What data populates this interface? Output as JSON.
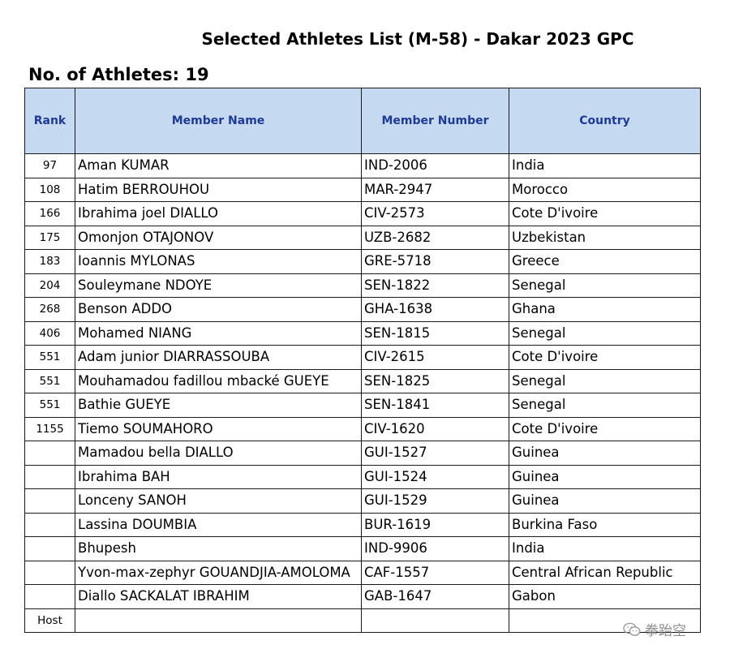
{
  "title": "Selected Athletes List (M-58) - Dakar 2023 GPC",
  "athlete_count": "No. of Athletes: 19",
  "table": {
    "headers": {
      "rank": "Rank",
      "name": "Member Name",
      "number": "Member Number",
      "country": "Country"
    },
    "rows": [
      {
        "rank": "97",
        "name": "Aman KUMAR",
        "number": "IND-2006",
        "country": "India"
      },
      {
        "rank": "108",
        "name": "Hatim BERROUHOU",
        "number": "MAR-2947",
        "country": "Morocco"
      },
      {
        "rank": "166",
        "name": "Ibrahima joel DIALLO",
        "number": "CIV-2573",
        "country": "Cote D'ivoire"
      },
      {
        "rank": "175",
        "name": "Omonjon OTAJONOV",
        "number": "UZB-2682",
        "country": "Uzbekistan"
      },
      {
        "rank": "183",
        "name": "Ioannis MYLONAS",
        "number": "GRE-5718",
        "country": "Greece"
      },
      {
        "rank": "204",
        "name": "Souleymane NDOYE",
        "number": "SEN-1822",
        "country": "Senegal"
      },
      {
        "rank": "268",
        "name": "Benson ADDO",
        "number": "GHA-1638",
        "country": "Ghana"
      },
      {
        "rank": "406",
        "name": "Mohamed NIANG",
        "number": "SEN-1815",
        "country": "Senegal"
      },
      {
        "rank": "551",
        "name": "Adam junior DIARRASSOUBA",
        "number": "CIV-2615",
        "country": "Cote D'ivoire"
      },
      {
        "rank": "551",
        "name": "Mouhamadou fadillou mbacké GUEYE",
        "number": "SEN-1825",
        "country": "Senegal"
      },
      {
        "rank": "551",
        "name": "Bathie GUEYE",
        "number": "SEN-1841",
        "country": "Senegal"
      },
      {
        "rank": "1155",
        "name": "Tiemo SOUMAHORO",
        "number": "CIV-1620",
        "country": "Cote D'ivoire"
      },
      {
        "rank": "",
        "name": "Mamadou bella DIALLO",
        "number": "GUI-1527",
        "country": "Guinea"
      },
      {
        "rank": "",
        "name": "Ibrahima BAH",
        "number": "GUI-1524",
        "country": "Guinea"
      },
      {
        "rank": "",
        "name": "Lonceny SANOH",
        "number": "GUI-1529",
        "country": "Guinea"
      },
      {
        "rank": "",
        "name": "Lassina DOUMBIA",
        "number": "BUR-1619",
        "country": "Burkina Faso"
      },
      {
        "rank": "",
        "name": "Bhupesh",
        "number": "IND-9906",
        "country": "India"
      },
      {
        "rank": "",
        "name": "Yvon-max-zephyr GOUANDJIA-AMOLOMA",
        "number": "CAF-1557",
        "country": "Central African Republic"
      },
      {
        "rank": "",
        "name": "Diallo SACKALAT IBRAHIM",
        "number": "GAB-1647",
        "country": "Gabon"
      },
      {
        "rank": "Host",
        "name": "",
        "number": "",
        "country": ""
      }
    ]
  },
  "watermark": {
    "text": "拳跆空",
    "icon": "wechat-icon"
  }
}
